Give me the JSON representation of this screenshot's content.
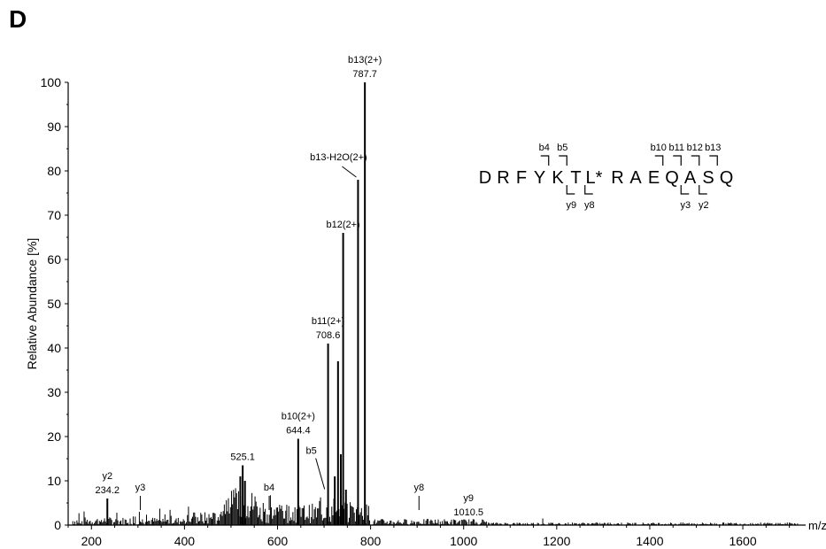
{
  "panel_letter": "D",
  "chart_data": {
    "type": "bar",
    "title": "",
    "ylabel": "Relative Abundance [%]",
    "xlabel": "m/z",
    "xlim": [
      150,
      1735
    ],
    "ylim": [
      0,
      100
    ],
    "xticks": [
      200,
      400,
      600,
      800,
      1000,
      1200,
      1400,
      1600
    ],
    "yticks": [
      0,
      10,
      20,
      30,
      40,
      50,
      60,
      70,
      80,
      90,
      100
    ],
    "peaks": [
      {
        "x": 234.2,
        "y": 6
      },
      {
        "x": 525.1,
        "y": 13.5
      },
      {
        "x": 644.4,
        "y": 19.5
      },
      {
        "x": 708.6,
        "y": 41
      },
      {
        "x": 723,
        "y": 11
      },
      {
        "x": 730,
        "y": 37
      },
      {
        "x": 736,
        "y": 16
      },
      {
        "x": 741,
        "y": 66
      },
      {
        "x": 747,
        "y": 8
      },
      {
        "x": 773,
        "y": 78
      },
      {
        "x": 787.7,
        "y": 100
      },
      {
        "x": 520,
        "y": 11
      },
      {
        "x": 530,
        "y": 10
      }
    ],
    "annotations": [
      {
        "x": 234.2,
        "y": 6,
        "lines": [
          "y2",
          "234.2"
        ],
        "tick": false
      },
      {
        "x": 305,
        "y": 3,
        "lines": [
          "y3"
        ],
        "tick": true
      },
      {
        "x": 525.1,
        "y": 13.5,
        "lines": [
          "525.1"
        ],
        "tick": false
      },
      {
        "x": 582,
        "y": 3,
        "lines": [
          "b4"
        ],
        "tick": true
      },
      {
        "x": 644.4,
        "y": 19.5,
        "lines": [
          "b10(2+)",
          "644.4"
        ],
        "tick": false
      },
      {
        "x": 708.6,
        "y": 41,
        "lines": [
          "b11(2+)",
          "708.6"
        ],
        "tick": false
      },
      {
        "x": 741,
        "y": 66,
        "lines": [
          "b12(2+)"
        ],
        "tick": false
      },
      {
        "x": 787.7,
        "y": 100,
        "lines": [
          "b13(2+)",
          "787.7"
        ],
        "tick": false
      },
      {
        "x": 904,
        "y": 3,
        "lines": [
          "y8"
        ],
        "tick": true
      },
      {
        "x": 1010.5,
        "y": 1,
        "lines": [
          "y9",
          "1010.5"
        ],
        "tick": false
      }
    ],
    "callouts": [
      {
        "label": "b5",
        "x": 705,
        "y": 7.5
      },
      {
        "label": "b13-H2O(2+)",
        "x": 773,
        "y": 78
      }
    ],
    "peptide": {
      "residues": [
        "D",
        "R",
        "F",
        "Y",
        "K",
        "T",
        "L*",
        "R",
        "A",
        "E",
        "Q",
        "A",
        "S",
        "Q"
      ],
      "b_ions": [
        {
          "label": "b4",
          "after": 4
        },
        {
          "label": "b5",
          "after": 5
        },
        {
          "label": "b10",
          "after": 10
        },
        {
          "label": "b11",
          "after": 11
        },
        {
          "label": "b12",
          "after": 12
        },
        {
          "label": "b13",
          "after": 13
        }
      ],
      "y_ions": [
        {
          "label": "y9",
          "after": 5
        },
        {
          "label": "y8",
          "after": 6
        },
        {
          "label": "y3",
          "after": 11
        },
        {
          "label": "y2",
          "after": 12
        }
      ]
    }
  }
}
